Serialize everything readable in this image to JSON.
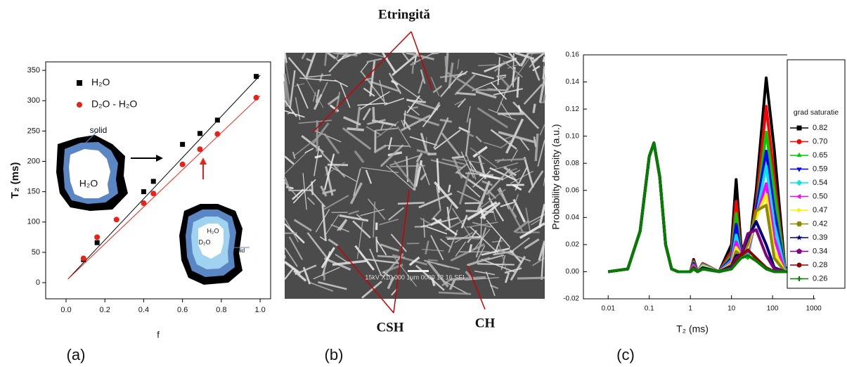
{
  "chart_data": [
    {
      "type": "scatter",
      "xlabel": "f",
      "ylabel": "T₂ (ms)",
      "xlim": [
        -0.105,
        1.054
      ],
      "ylim": [
        -26.6,
        364
      ],
      "xticks": [
        {
          "value": 0,
          "label": "0.0"
        },
        0.2,
        0.4,
        0.6,
        0.8,
        {
          "value": 1,
          "label": "1.0"
        }
      ],
      "yticks": [
        0,
        50,
        100,
        150,
        200,
        250,
        300,
        350
      ],
      "legend": "upper left",
      "series": [
        {
          "name": "H₂O",
          "color": "#000000",
          "marker": "square",
          "x": [
            0.09,
            0.16,
            0.4,
            0.45,
            0.6,
            0.69,
            0.78,
            0.98
          ],
          "values": [
            38,
            66,
            150,
            167,
            228,
            246,
            268,
            340
          ],
          "fit_x": [
            0.01,
            1.0
          ],
          "fit_values": [
            6,
            342
          ]
        },
        {
          "name": "D₂O - H₂O",
          "color": "#e8221a",
          "marker": "circle",
          "x": [
            0.09,
            0.16,
            0.26,
            0.4,
            0.45,
            0.6,
            0.69,
            0.78,
            0.98
          ],
          "values": [
            40,
            75,
            104,
            131,
            147,
            195,
            220,
            245,
            305
          ],
          "fit_x": [
            0.01,
            1.0
          ],
          "fit_values": [
            6,
            308
          ]
        }
      ],
      "annotations": [
        "solid",
        "H₂O",
        "H₂O",
        "D₂O",
        "solid"
      ]
    },
    {
      "type": "line",
      "xlabel": "T₂ (ms)",
      "ylabel": "Probability density (a.u.)",
      "log_x": true,
      "xlim": [
        0.0025,
        1100
      ],
      "ylim": [
        -0.02,
        0.16
      ],
      "xticks": [
        0.01,
        0.1,
        1,
        10,
        100,
        1000
      ],
      "yticks": [
        -0.02,
        {
          "value": 0,
          "label": "0.00"
        },
        0.02,
        0.04,
        0.06,
        0.08,
        {
          "value": 0.1,
          "label": "0.10"
        },
        0.12,
        0.14,
        0.16
      ],
      "legend": "outside right",
      "legend_title": "grad saturatie",
      "x": [
        0.01,
        0.03,
        0.06,
        0.1,
        0.13,
        0.18,
        0.25,
        0.35,
        0.5,
        1,
        1.2,
        1.5,
        2,
        5,
        10,
        13,
        17,
        25,
        40,
        70,
        110,
        200,
        400
      ],
      "series": [
        {
          "name": "0.82",
          "color": "#000000",
          "marker": "square",
          "values": [
            0,
            0.002,
            0.03,
            0.085,
            0.095,
            0.07,
            0.02,
            0.002,
            0,
            0,
            0.009,
            0,
            0.006,
            0,
            0.02,
            0.068,
            0.02,
            0.01,
            0.06,
            0.143,
            0.09,
            0.003,
            0
          ]
        },
        {
          "name": "0.70",
          "color": "#ff0000",
          "marker": "circle",
          "values": [
            0,
            0.002,
            0.03,
            0.085,
            0.095,
            0.07,
            0.02,
            0.002,
            0,
            0,
            0.008,
            0,
            0.006,
            0,
            0.015,
            0.052,
            0.015,
            0.01,
            0.05,
            0.122,
            0.07,
            0.002,
            0
          ]
        },
        {
          "name": "0.65",
          "color": "#00cc00",
          "marker": "triangle-up",
          "values": [
            0,
            0.002,
            0.03,
            0.085,
            0.095,
            0.07,
            0.02,
            0.002,
            0,
            0,
            0.007,
            0,
            0.005,
            0,
            0.012,
            0.043,
            0.013,
            0.01,
            0.045,
            0.103,
            0.06,
            0.002,
            0
          ]
        },
        {
          "name": "0.59",
          "color": "#0000ff",
          "marker": "triangle-down",
          "values": [
            0,
            0.002,
            0.03,
            0.085,
            0.095,
            0.07,
            0.02,
            0.002,
            0,
            0,
            0.006,
            0,
            0.005,
            0,
            0.01,
            0.035,
            0.012,
            0.012,
            0.045,
            0.089,
            0.045,
            0.001,
            0
          ]
        },
        {
          "name": "0.54",
          "color": "#00e5ee",
          "marker": "diamond",
          "values": [
            0,
            0.002,
            0.03,
            0.085,
            0.095,
            0.07,
            0.02,
            0.002,
            0,
            0,
            0.005,
            0,
            0.005,
            0,
            0.008,
            0.027,
            0.012,
            0.012,
            0.04,
            0.078,
            0.035,
            0.001,
            0
          ]
        },
        {
          "name": "0.50",
          "color": "#ff00ff",
          "marker": "triangle-left",
          "values": [
            0,
            0.002,
            0.03,
            0.085,
            0.095,
            0.07,
            0.02,
            0.002,
            0,
            0,
            0.005,
            0,
            0.004,
            0,
            0.007,
            0.022,
            0.012,
            0.015,
            0.04,
            0.065,
            0.025,
            0,
            0
          ]
        },
        {
          "name": "0.47",
          "color": "#f5f500",
          "marker": "triangle-right",
          "values": [
            0,
            0.002,
            0.03,
            0.085,
            0.095,
            0.07,
            0.02,
            0.002,
            0,
            0,
            0.004,
            0,
            0.004,
            0,
            0.006,
            0.018,
            0.012,
            0.018,
            0.04,
            0.057,
            0.015,
            0,
            0
          ]
        },
        {
          "name": "0.42",
          "color": "#8b8b00",
          "marker": "hexagon",
          "values": [
            0,
            0.002,
            0.03,
            0.085,
            0.095,
            0.07,
            0.02,
            0.002,
            0,
            0,
            0.004,
            0,
            0.003,
            0,
            0.005,
            0.015,
            0.012,
            0.02,
            0.045,
            0.049,
            0.01,
            0,
            0
          ]
        },
        {
          "name": "0.39",
          "color": "#000080",
          "marker": "star",
          "values": [
            0,
            0.002,
            0.03,
            0.085,
            0.095,
            0.07,
            0.02,
            0.002,
            0,
            0,
            0.003,
            0,
            0.003,
            0,
            0.004,
            0.012,
            0.012,
            0.025,
            0.037,
            0.02,
            0.003,
            0,
            0
          ]
        },
        {
          "name": "0.34",
          "color": "#800080",
          "marker": "pentagon",
          "values": [
            0,
            0.002,
            0.03,
            0.085,
            0.095,
            0.07,
            0.02,
            0.002,
            0,
            0,
            0.003,
            0,
            0.002,
            0,
            0.003,
            0.01,
            0.012,
            0.028,
            0.031,
            0.012,
            0.002,
            0,
            0
          ]
        },
        {
          "name": "0.28",
          "color": "#8b0000",
          "marker": "circle",
          "values": [
            0,
            0.002,
            0.03,
            0.085,
            0.095,
            0.07,
            0.02,
            0.002,
            0,
            0,
            0.002,
            0,
            0.002,
            0,
            0.002,
            0.008,
            0.012,
            0.016,
            0.01,
            0.003,
            0,
            0,
            0
          ]
        },
        {
          "name": "0.26",
          "color": "#008000",
          "marker": "plus",
          "values": [
            0,
            0.002,
            0.03,
            0.085,
            0.095,
            0.07,
            0.02,
            0.002,
            0,
            0,
            0.002,
            0,
            0.002,
            0,
            0.002,
            0.006,
            0.01,
            0.012,
            0.008,
            0.002,
            0,
            0,
            0
          ]
        }
      ]
    }
  ],
  "figure_b": {
    "labels": [
      "Etringită",
      "CSH",
      "CH"
    ],
    "scale_text": "15kV  X10,000  1μm  0000  12 16 SEI"
  },
  "panel_labels": [
    "(a)",
    "(b)",
    "(c)"
  ]
}
